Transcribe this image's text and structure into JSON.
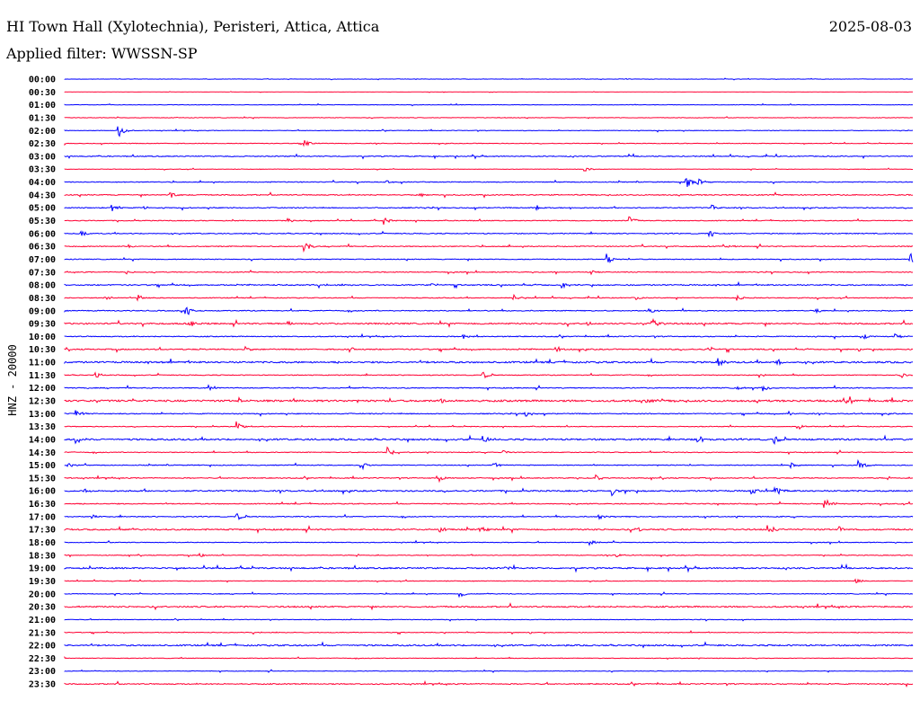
{
  "header": {
    "title": "HI Town Hall (Xylotechnia), Peristeri, Attica, Attica",
    "date": "2025-08-03",
    "filter": "Applied filter: WWSSN-SP"
  },
  "chart_data": {
    "type": "line",
    "title": "HI Town Hall (Xylotechnia), Peristeri, Attica, Attica",
    "ylabel": "HNZ - 20000",
    "row_minutes": 30,
    "colors": [
      "#0000ff",
      "#ff0033"
    ],
    "row_labels": [
      "00:00",
      "00:30",
      "01:00",
      "01:30",
      "02:00",
      "02:30",
      "03:00",
      "03:30",
      "04:00",
      "04:30",
      "05:00",
      "05:30",
      "06:00",
      "06:30",
      "07:00",
      "07:30",
      "08:00",
      "08:30",
      "09:00",
      "09:30",
      "10:00",
      "10:30",
      "11:00",
      "11:30",
      "12:00",
      "12:30",
      "13:00",
      "13:30",
      "14:00",
      "14:30",
      "15:00",
      "15:30",
      "16:00",
      "16:30",
      "17:00",
      "17:30",
      "18:00",
      "18:30",
      "19:00",
      "19:30",
      "20:00",
      "20:30",
      "21:00",
      "21:30",
      "22:00",
      "22:30",
      "23:00",
      "23:30"
    ],
    "noise": [
      0.3,
      0.2,
      0.4,
      0.4,
      0.5,
      0.5,
      0.8,
      0.4,
      0.7,
      0.9,
      0.8,
      0.7,
      0.8,
      0.8,
      0.7,
      0.7,
      1.0,
      0.7,
      0.8,
      1.2,
      0.8,
      1.0,
      1.4,
      0.7,
      0.8,
      1.6,
      0.8,
      0.6,
      1.4,
      0.7,
      0.7,
      0.8,
      1.2,
      0.8,
      0.8,
      1.2,
      0.6,
      0.6,
      1.2,
      0.5,
      0.6,
      1.2,
      0.5,
      0.6,
      1.2,
      0.5,
      0.5,
      0.9
    ],
    "events": [
      [
        4,
        1.9,
        8
      ],
      [
        5,
        8.5,
        4
      ],
      [
        7,
        18.4,
        3
      ],
      [
        8,
        11.4,
        2
      ],
      [
        8,
        22.0,
        7
      ],
      [
        8,
        22.4,
        5
      ],
      [
        9,
        3.75,
        4
      ],
      [
        9,
        12.6,
        2
      ],
      [
        10,
        1.7,
        4
      ],
      [
        10,
        2.8,
        3
      ],
      [
        10,
        16.7,
        3
      ],
      [
        10,
        22.9,
        4
      ],
      [
        11,
        7.9,
        3
      ],
      [
        11,
        11.3,
        5
      ],
      [
        11,
        20.0,
        5
      ],
      [
        12,
        0.6,
        3
      ],
      [
        12,
        22.8,
        5
      ],
      [
        13,
        2.3,
        2
      ],
      [
        13,
        8.5,
        6
      ],
      [
        13,
        23.3,
        2
      ],
      [
        14,
        19.2,
        5
      ],
      [
        14,
        29.9,
        7
      ],
      [
        15,
        2.2,
        2
      ],
      [
        15,
        18.6,
        3
      ],
      [
        16,
        13.0,
        2
      ],
      [
        16,
        17.6,
        4
      ],
      [
        17,
        1.4,
        4
      ],
      [
        17,
        2.6,
        4
      ],
      [
        17,
        15.9,
        3
      ],
      [
        17,
        20.2,
        3
      ],
      [
        17,
        23.8,
        3
      ],
      [
        18,
        4.3,
        6
      ],
      [
        18,
        20.7,
        3
      ],
      [
        18,
        26.6,
        3
      ],
      [
        19,
        4.4,
        5
      ],
      [
        19,
        7.9,
        3
      ],
      [
        19,
        18.5,
        3
      ],
      [
        19,
        20.8,
        6
      ],
      [
        20,
        14.1,
        3
      ],
      [
        20,
        28.3,
        3
      ],
      [
        20,
        29.4,
        3
      ],
      [
        21,
        6.4,
        4
      ],
      [
        21,
        10.1,
        3
      ],
      [
        21,
        17.4,
        3
      ],
      [
        21,
        22.8,
        3
      ],
      [
        22,
        23.1,
        5
      ],
      [
        22,
        25.2,
        4
      ],
      [
        23,
        1.1,
        3
      ],
      [
        23,
        14.8,
        4
      ],
      [
        23,
        24.6,
        3
      ],
      [
        23,
        29.6,
        3
      ],
      [
        24,
        5.1,
        5
      ],
      [
        24,
        23.8,
        3
      ],
      [
        24,
        24.7,
        4
      ],
      [
        25,
        6.2,
        3
      ],
      [
        25,
        13.3,
        4
      ],
      [
        25,
        20.6,
        4
      ],
      [
        25,
        27.6,
        3
      ],
      [
        26,
        0.4,
        5
      ],
      [
        26,
        16.3,
        4
      ],
      [
        26,
        25.6,
        3
      ],
      [
        27,
        6.1,
        6
      ],
      [
        27,
        26.0,
        3
      ],
      [
        28,
        0.4,
        5
      ],
      [
        28,
        14.8,
        5
      ],
      [
        28,
        22.4,
        4
      ],
      [
        28,
        25.1,
        4
      ],
      [
        29,
        11.4,
        6
      ],
      [
        29,
        15.5,
        3
      ],
      [
        30,
        0.1,
        3
      ],
      [
        30,
        10.5,
        5
      ],
      [
        30,
        15.2,
        3
      ],
      [
        30,
        25.7,
        3
      ],
      [
        30,
        28.1,
        6
      ],
      [
        31,
        13.2,
        5
      ],
      [
        31,
        18.8,
        3
      ],
      [
        32,
        0.7,
        3
      ],
      [
        32,
        19.4,
        5
      ],
      [
        32,
        24.3,
        4
      ],
      [
        32,
        25.2,
        4
      ],
      [
        33,
        26.9,
        6
      ],
      [
        34,
        1.0,
        3
      ],
      [
        34,
        6.1,
        4
      ],
      [
        34,
        18.9,
        3
      ],
      [
        35,
        13.3,
        3
      ],
      [
        35,
        14.7,
        3
      ],
      [
        35,
        20.2,
        3
      ],
      [
        35,
        24.9,
        5
      ],
      [
        35,
        27.4,
        4
      ],
      [
        36,
        18.6,
        4
      ],
      [
        37,
        4.8,
        3
      ],
      [
        37,
        19.5,
        3
      ],
      [
        38,
        15.6,
        4
      ],
      [
        39,
        28.0,
        3
      ],
      [
        40,
        14.0,
        3
      ]
    ]
  }
}
